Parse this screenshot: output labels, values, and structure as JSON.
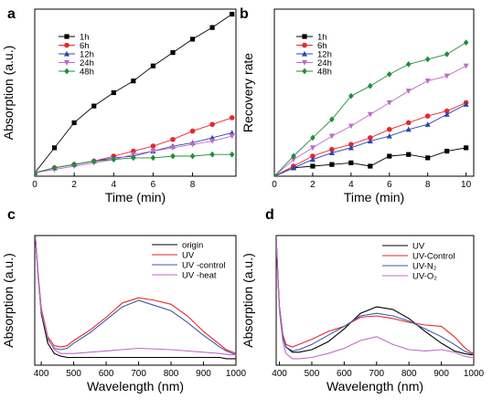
{
  "chart_data": [
    {
      "panel": "a",
      "type": "line",
      "xlabel": "Time (min)",
      "ylabel": "Absorption (a.u.)",
      "xlim": [
        0,
        10.2
      ],
      "ylim": [
        0,
        1.0
      ],
      "xticks": [
        0,
        2,
        4,
        6,
        8
      ],
      "legend": "top-left",
      "series": [
        {
          "name": "1h",
          "color": "#000000",
          "marker": "square",
          "x": [
            0,
            1,
            2,
            3,
            4,
            5,
            6,
            7,
            8,
            9,
            10
          ],
          "y": [
            0.02,
            0.17,
            0.32,
            0.42,
            0.5,
            0.57,
            0.66,
            0.74,
            0.82,
            0.89,
            0.97
          ]
        },
        {
          "name": "6h",
          "color": "#e8262a",
          "marker": "circle",
          "x": [
            0,
            1,
            2,
            3,
            4,
            5,
            6,
            7,
            8,
            9,
            10
          ],
          "y": [
            0.02,
            0.05,
            0.07,
            0.09,
            0.12,
            0.15,
            0.18,
            0.22,
            0.27,
            0.31,
            0.35
          ]
        },
        {
          "name": "12h",
          "color": "#2a46b4",
          "marker": "triangle-up",
          "x": [
            0,
            1,
            2,
            3,
            4,
            5,
            6,
            7,
            8,
            9,
            10
          ],
          "y": [
            0.02,
            0.05,
            0.07,
            0.09,
            0.11,
            0.12,
            0.15,
            0.18,
            0.2,
            0.23,
            0.26
          ]
        },
        {
          "name": "24h",
          "color": "#c06ac9",
          "marker": "triangle-down",
          "x": [
            0,
            1,
            2,
            3,
            4,
            5,
            6,
            7,
            8,
            9,
            10
          ],
          "y": [
            0.02,
            0.04,
            0.06,
            0.08,
            0.1,
            0.13,
            0.15,
            0.17,
            0.19,
            0.21,
            0.24
          ]
        },
        {
          "name": "48h",
          "color": "#1d8f3a",
          "marker": "diamond",
          "x": [
            0,
            1,
            2,
            3,
            4,
            5,
            6,
            7,
            8,
            9,
            10
          ],
          "y": [
            0.02,
            0.05,
            0.07,
            0.09,
            0.1,
            0.11,
            0.11,
            0.12,
            0.12,
            0.13,
            0.13
          ]
        }
      ]
    },
    {
      "panel": "b",
      "type": "line",
      "xlabel": "Time (min)",
      "ylabel": "Recovery rate",
      "xlim": [
        0,
        10.4
      ],
      "ylim": [
        0,
        1.0
      ],
      "xticks": [
        0,
        2,
        4,
        6,
        8,
        10
      ],
      "legend": "top-left",
      "series": [
        {
          "name": "1h",
          "color": "#000000",
          "marker": "square",
          "x": [
            0,
            1,
            2,
            3,
            4,
            5,
            6,
            7,
            8,
            9,
            10
          ],
          "y": [
            0.0,
            0.05,
            0.06,
            0.07,
            0.08,
            0.06,
            0.12,
            0.13,
            0.11,
            0.15,
            0.17
          ]
        },
        {
          "name": "6h",
          "color": "#e8262a",
          "marker": "circle",
          "x": [
            0,
            1,
            2,
            3,
            4,
            5,
            6,
            7,
            8,
            9,
            10
          ],
          "y": [
            0.0,
            0.06,
            0.12,
            0.16,
            0.19,
            0.23,
            0.28,
            0.32,
            0.36,
            0.39,
            0.44
          ]
        },
        {
          "name": "12h",
          "color": "#2a46b4",
          "marker": "triangle-up",
          "x": [
            0,
            1,
            2,
            3,
            4,
            5,
            6,
            7,
            8,
            9,
            10
          ],
          "y": [
            0.0,
            0.05,
            0.1,
            0.14,
            0.17,
            0.21,
            0.24,
            0.28,
            0.31,
            0.37,
            0.43
          ]
        },
        {
          "name": "24h",
          "color": "#c06ac9",
          "marker": "triangle-down",
          "x": [
            0,
            1,
            2,
            3,
            4,
            5,
            6,
            7,
            8,
            9,
            10
          ],
          "y": [
            0.0,
            0.1,
            0.17,
            0.24,
            0.3,
            0.37,
            0.44,
            0.51,
            0.57,
            0.6,
            0.66
          ]
        },
        {
          "name": "48h",
          "color": "#1d8f3a",
          "marker": "diamond",
          "x": [
            0,
            1,
            2,
            3,
            4,
            5,
            6,
            7,
            8,
            9,
            10
          ],
          "y": [
            0.0,
            0.12,
            0.23,
            0.34,
            0.48,
            0.54,
            0.61,
            0.67,
            0.7,
            0.73,
            0.8
          ]
        }
      ]
    },
    {
      "panel": "c",
      "type": "line",
      "xlabel": "Wavelength (nm)",
      "ylabel": "Absorption (a.u.)",
      "xlim": [
        380,
        1000
      ],
      "ylim": [
        0,
        1.0
      ],
      "xticks": [
        400,
        500,
        600,
        700,
        800,
        900,
        1000
      ],
      "legend": "top-right",
      "series": [
        {
          "name": "origin",
          "color": "#000000",
          "x": [
            382,
            390,
            400,
            420,
            440,
            460,
            480,
            500,
            600,
            700,
            800,
            900,
            950,
            970,
            990,
            1000
          ],
          "y": [
            0.99,
            0.7,
            0.4,
            0.17,
            0.09,
            0.07,
            0.06,
            0.06,
            0.06,
            0.06,
            0.06,
            0.06,
            0.06,
            0.05,
            0.05,
            0.05
          ]
        },
        {
          "name": "UV",
          "color": "#e8262a",
          "x": [
            382,
            390,
            400,
            420,
            440,
            460,
            480,
            500,
            550,
            600,
            650,
            700,
            750,
            800,
            850,
            900,
            950,
            970,
            990,
            1000
          ],
          "y": [
            0.99,
            0.72,
            0.44,
            0.22,
            0.15,
            0.14,
            0.15,
            0.19,
            0.27,
            0.37,
            0.48,
            0.52,
            0.5,
            0.47,
            0.38,
            0.26,
            0.16,
            0.12,
            0.1,
            0.09
          ]
        },
        {
          "name": "UV -control",
          "color": "#3b5aa8",
          "x": [
            382,
            390,
            400,
            420,
            440,
            460,
            480,
            500,
            550,
            600,
            650,
            700,
            750,
            800,
            850,
            900,
            950,
            970,
            990,
            1000
          ],
          "y": [
            0.99,
            0.71,
            0.42,
            0.2,
            0.13,
            0.12,
            0.13,
            0.17,
            0.25,
            0.35,
            0.45,
            0.5,
            0.46,
            0.42,
            0.33,
            0.23,
            0.14,
            0.11,
            0.09,
            0.08
          ]
        },
        {
          "name": "UV -heat",
          "color": "#c06ac9",
          "x": [
            382,
            390,
            400,
            420,
            440,
            460,
            480,
            500,
            600,
            700,
            800,
            900,
            950,
            980,
            1000
          ],
          "y": [
            0.99,
            0.7,
            0.42,
            0.21,
            0.12,
            0.09,
            0.09,
            0.09,
            0.11,
            0.13,
            0.12,
            0.1,
            0.09,
            0.08,
            0.08
          ]
        }
      ]
    },
    {
      "panel": "d",
      "type": "line",
      "xlabel": "Wavelength (nm)",
      "ylabel": "Absorption (a.u.)",
      "xlim": [
        390,
        1000
      ],
      "ylim": [
        0,
        1.0
      ],
      "xticks": [
        400,
        500,
        600,
        700,
        800,
        900,
        1000
      ],
      "legend": "top-right",
      "series": [
        {
          "name": "UV",
          "color": "#000000",
          "x": [
            390,
            395,
            400,
            410,
            420,
            440,
            460,
            500,
            550,
            600,
            650,
            700,
            750,
            800,
            850,
            900,
            940,
            970,
            990,
            1000
          ],
          "y": [
            0.99,
            0.7,
            0.45,
            0.23,
            0.14,
            0.1,
            0.1,
            0.12,
            0.18,
            0.28,
            0.4,
            0.45,
            0.43,
            0.36,
            0.26,
            0.17,
            0.11,
            0.09,
            0.08,
            0.08
          ]
        },
        {
          "name": "UV-Control",
          "color": "#e8262a",
          "x": [
            390,
            395,
            400,
            410,
            420,
            440,
            460,
            500,
            550,
            600,
            650,
            700,
            750,
            800,
            850,
            900,
            940,
            970,
            990,
            1000
          ],
          "y": [
            0.99,
            0.7,
            0.45,
            0.24,
            0.16,
            0.14,
            0.16,
            0.2,
            0.26,
            0.3,
            0.37,
            0.38,
            0.36,
            0.33,
            0.31,
            0.3,
            0.22,
            0.14,
            0.1,
            0.09
          ]
        },
        {
          "name": "UV-N₂",
          "color": "#3b5aa8",
          "x": [
            390,
            395,
            400,
            410,
            420,
            440,
            460,
            500,
            550,
            600,
            650,
            700,
            750,
            800,
            850,
            900,
            940,
            970,
            990,
            1000
          ],
          "y": [
            0.99,
            0.69,
            0.44,
            0.22,
            0.14,
            0.11,
            0.12,
            0.16,
            0.23,
            0.3,
            0.38,
            0.4,
            0.38,
            0.34,
            0.28,
            0.22,
            0.16,
            0.11,
            0.09,
            0.08
          ]
        },
        {
          "name": "UV-O₂",
          "color": "#c06ac9",
          "x": [
            390,
            395,
            400,
            410,
            420,
            440,
            460,
            500,
            550,
            600,
            650,
            700,
            750,
            800,
            850,
            900,
            940,
            970,
            990,
            1000
          ],
          "y": [
            0.99,
            0.68,
            0.42,
            0.19,
            0.09,
            0.05,
            0.05,
            0.06,
            0.09,
            0.13,
            0.19,
            0.22,
            0.16,
            0.12,
            0.11,
            0.12,
            0.1,
            0.07,
            0.06,
            0.06
          ]
        }
      ]
    }
  ]
}
